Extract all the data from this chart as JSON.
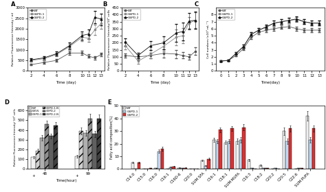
{
  "days_abc": [
    2,
    4,
    6,
    8,
    10,
    11,
    12,
    13
  ],
  "days_c": [
    0,
    1,
    2,
    3,
    4,
    5,
    6,
    7,
    8,
    9,
    10,
    11,
    12,
    13
  ],
  "panel_A": {
    "WT": [
      300,
      400,
      500,
      850,
      850,
      700,
      620,
      780
    ],
    "G6PD1": [
      500,
      580,
      780,
      1150,
      1600,
      1550,
      1950,
      2250
    ],
    "G6PD2": [
      530,
      620,
      820,
      1200,
      1680,
      1750,
      2550,
      2450
    ],
    "WT_err": [
      40,
      50,
      60,
      100,
      100,
      80,
      80,
      90
    ],
    "G6PD1_err": [
      55,
      65,
      85,
      140,
      180,
      180,
      230,
      260
    ],
    "G6PD2_err": [
      55,
      70,
      90,
      150,
      200,
      230,
      280,
      280
    ],
    "ylabel": "Relative Fluorescence Intensity / ml",
    "xlabel": "Time (day)",
    "ylim": [
      0,
      3000
    ],
    "yticks": [
      0,
      500,
      1000,
      1500,
      2000,
      2500,
      3000
    ]
  },
  "panel_B": {
    "WT": [
      110,
      100,
      110,
      125,
      120,
      110,
      100,
      140
    ],
    "G6PD1": [
      180,
      70,
      120,
      175,
      240,
      250,
      340,
      360
    ],
    "G6PD2": [
      205,
      110,
      180,
      200,
      270,
      280,
      355,
      360
    ],
    "WT_err": [
      15,
      18,
      18,
      28,
      28,
      22,
      18,
      28
    ],
    "G6PD1_err": [
      25,
      18,
      28,
      38,
      55,
      55,
      45,
      55
    ],
    "G6PD2_err": [
      28,
      18,
      32,
      45,
      65,
      65,
      55,
      60
    ],
    "ylabel": "Relative Fluorescence Intensity/10⁶ cells",
    "xlabel": "Time (day)",
    "ylim": [
      0,
      450
    ],
    "yticks": [
      0,
      50,
      100,
      150,
      200,
      250,
      300,
      350,
      400,
      450
    ]
  },
  "panel_C": {
    "WT": [
      1.4,
      1.5,
      2.2,
      3.2,
      4.8,
      5.5,
      5.8,
      6.0,
      6.2,
      6.3,
      6.0,
      5.8,
      5.8,
      5.8
    ],
    "G6PD1": [
      1.4,
      1.5,
      2.5,
      3.5,
      5.2,
      5.8,
      6.2,
      6.8,
      7.0,
      7.2,
      7.3,
      7.0,
      6.8,
      6.8
    ],
    "G6PD2": [
      1.4,
      1.5,
      2.5,
      3.5,
      5.2,
      5.8,
      6.3,
      6.8,
      7.0,
      7.2,
      7.4,
      7.0,
      6.8,
      6.8
    ],
    "WT_err": [
      0.1,
      0.1,
      0.15,
      0.2,
      0.25,
      0.25,
      0.25,
      0.25,
      0.25,
      0.25,
      0.25,
      0.25,
      0.25,
      0.25
    ],
    "G6PD1_err": [
      0.1,
      0.1,
      0.15,
      0.25,
      0.3,
      0.3,
      0.3,
      0.35,
      0.35,
      0.35,
      0.35,
      0.35,
      0.35,
      0.35
    ],
    "G6PD2_err": [
      0.1,
      0.1,
      0.15,
      0.25,
      0.3,
      0.3,
      0.3,
      0.35,
      0.35,
      0.35,
      0.35,
      0.35,
      0.35,
      0.35
    ],
    "ylabel": "Cell numbers (x10⁶ mL⁻¹)",
    "xlabel": "Time(day)",
    "ylim": [
      0,
      9
    ],
    "yticks": [
      0,
      1,
      2,
      3,
      4,
      5,
      6,
      7,
      8
    ]
  },
  "panel_D": {
    "groups_N": [
      "WT",
      "G6PD-1",
      "G6PD-2"
    ],
    "groups_leg": [
      "WT",
      "WT-N",
      "G6PD-1",
      "G6PD-1-N",
      "G6PD-2",
      "G6PD-2-N"
    ],
    "values_48_WT": 120,
    "values_48_WTN": 185,
    "values_48_G1": 320,
    "values_48_G1N": 460,
    "values_48_G2": 340,
    "values_48_G2N": 450,
    "values_99_WT": 130,
    "values_99_WTN": 390,
    "values_99_G1": 370,
    "values_99_G1N": 520,
    "values_99_G2": 360,
    "values_99_G2N": 520,
    "err_48_WT": 10,
    "err_48_WTN": 20,
    "err_48_G1": 30,
    "err_48_G1N": 35,
    "err_48_G2": 25,
    "err_48_G2N": 35,
    "err_99_WT": 12,
    "err_99_WTN": 35,
    "err_99_G1": 30,
    "err_99_G1N": 45,
    "err_99_G2": 30,
    "err_99_G2N": 40,
    "colors_solid": [
      "#e8e8e8",
      "#b0b0b0",
      "#606060"
    ],
    "colors_hatch": [
      "#f5f5f5",
      "#c8c8c8",
      "#808080"
    ],
    "ylabel": "Relative Fluorescence Intensity/ 10⁶ cells",
    "xlabel": "Time(hour)",
    "ylim": [
      0,
      650
    ],
    "yticks": [
      0,
      100,
      200,
      300,
      400,
      500,
      600
    ]
  },
  "panel_E": {
    "cats": [
      "C14:0",
      "C15:0",
      "C16:0",
      "C16:1",
      "C16D-6",
      "C20:0",
      "SUM SFA",
      "C16:1",
      "C18:1",
      "SUM MUFA",
      "C16:3",
      "C18:2",
      "C20:2",
      "C20:5",
      "C22:6",
      "SUM PUFA"
    ],
    "WT": [
      5.0,
      0.3,
      0.5,
      0.2,
      1.0,
      0.3,
      6.5,
      23.0,
      21.0,
      22.0,
      7.0,
      3.0,
      0.2,
      30.0,
      0.3,
      42.0
    ],
    "G6PD1": [
      0.3,
      0.3,
      14.0,
      1.5,
      0.5,
      0.2,
      2.5,
      22.0,
      22.0,
      23.0,
      0.5,
      0.5,
      0.5,
      22.0,
      0.5,
      23.0
    ],
    "G6PD2": [
      5.0,
      0.5,
      16.0,
      2.0,
      1.0,
      0.3,
      8.0,
      31.0,
      32.0,
      33.0,
      0.2,
      0.8,
      0.2,
      32.0,
      0.5,
      32.0
    ],
    "WT_err": [
      0.5,
      0.05,
      0.05,
      0.05,
      0.1,
      0.05,
      0.5,
      1.5,
      1.5,
      2.0,
      0.8,
      0.4,
      0.05,
      3.0,
      0.05,
      4.0
    ],
    "G6PD1_err": [
      0.05,
      0.05,
      1.5,
      0.2,
      0.05,
      0.05,
      0.3,
      1.5,
      1.5,
      2.0,
      0.05,
      0.1,
      0.1,
      2.0,
      0.1,
      2.0
    ],
    "G6PD2_err": [
      0.5,
      0.05,
      1.5,
      0.2,
      0.1,
      0.05,
      0.8,
      2.0,
      2.0,
      2.5,
      0.05,
      0.1,
      0.05,
      2.5,
      0.1,
      2.5
    ],
    "ylabel": "Fatty acid composition(%)",
    "ylim": [
      0,
      50
    ],
    "yticks": [
      0,
      10,
      20,
      30,
      40,
      50
    ]
  },
  "line_colors": [
    "#555555",
    "#888888",
    "#111111"
  ],
  "line_markers": [
    "s",
    "s",
    "^"
  ],
  "line_styles": [
    "-",
    "-",
    "-"
  ]
}
